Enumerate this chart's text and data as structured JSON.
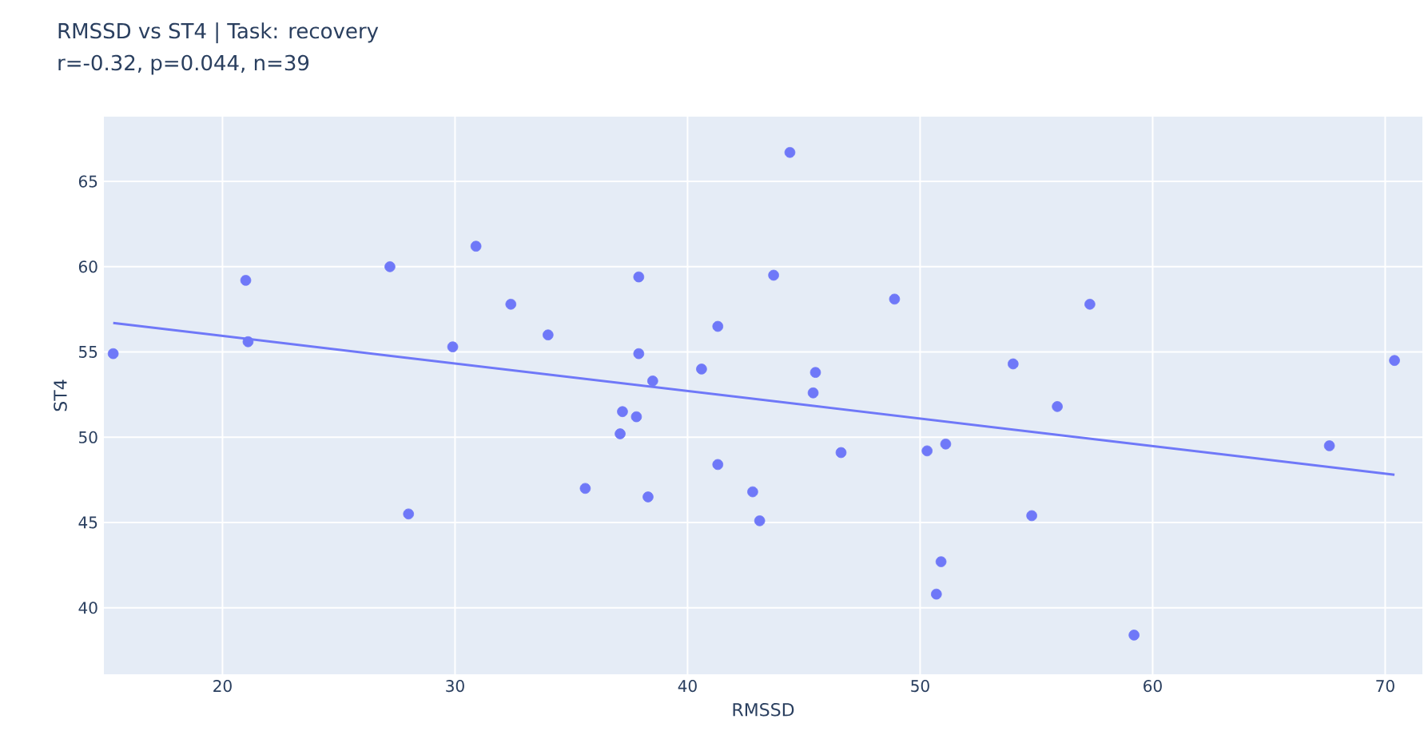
{
  "chart_data": {
    "type": "scatter",
    "title": "RMSSD vs ST4 | Task: recovery",
    "subtitle": "r=-0.32, p=0.044, n=39",
    "xlabel": "RMSSD",
    "ylabel": "ST4",
    "xlim": [
      14.9,
      71.6
    ],
    "ylim": [
      36.1,
      68.8
    ],
    "xticks": [
      20,
      30,
      40,
      50,
      60,
      70
    ],
    "yticks": [
      40,
      45,
      50,
      55,
      60,
      65
    ],
    "grid": true,
    "marker": "circle",
    "series": [
      {
        "color": "#6f78f8",
        "x": [
          15.3,
          21.0,
          21.1,
          27.2,
          28.0,
          29.9,
          30.9,
          32.4,
          34.0,
          35.6,
          37.2,
          37.1,
          37.8,
          37.9,
          37.9,
          38.3,
          38.5,
          40.6,
          41.3,
          41.3,
          42.8,
          43.1,
          43.7,
          44.4,
          45.4,
          45.5,
          46.6,
          48.9,
          50.3,
          51.1,
          50.9,
          50.7,
          54.0,
          54.8,
          55.9,
          57.3,
          59.2,
          67.6,
          70.4
        ],
        "values": [
          54.9,
          59.2,
          55.6,
          60.0,
          45.5,
          55.3,
          61.2,
          57.8,
          56.0,
          47.0,
          51.5,
          50.2,
          51.2,
          59.4,
          54.9,
          46.5,
          53.3,
          54.0,
          56.5,
          48.4,
          46.8,
          45.1,
          59.5,
          66.7,
          52.6,
          53.8,
          49.1,
          58.1,
          49.2,
          49.6,
          42.7,
          40.8,
          54.3,
          45.4,
          51.8,
          57.8,
          38.4,
          49.5,
          54.5
        ]
      },
      {
        "type": "line",
        "color": "#6f78f8",
        "marker": "none",
        "x": [
          15.3,
          70.4
        ],
        "values": [
          56.7,
          47.8
        ]
      }
    ]
  }
}
